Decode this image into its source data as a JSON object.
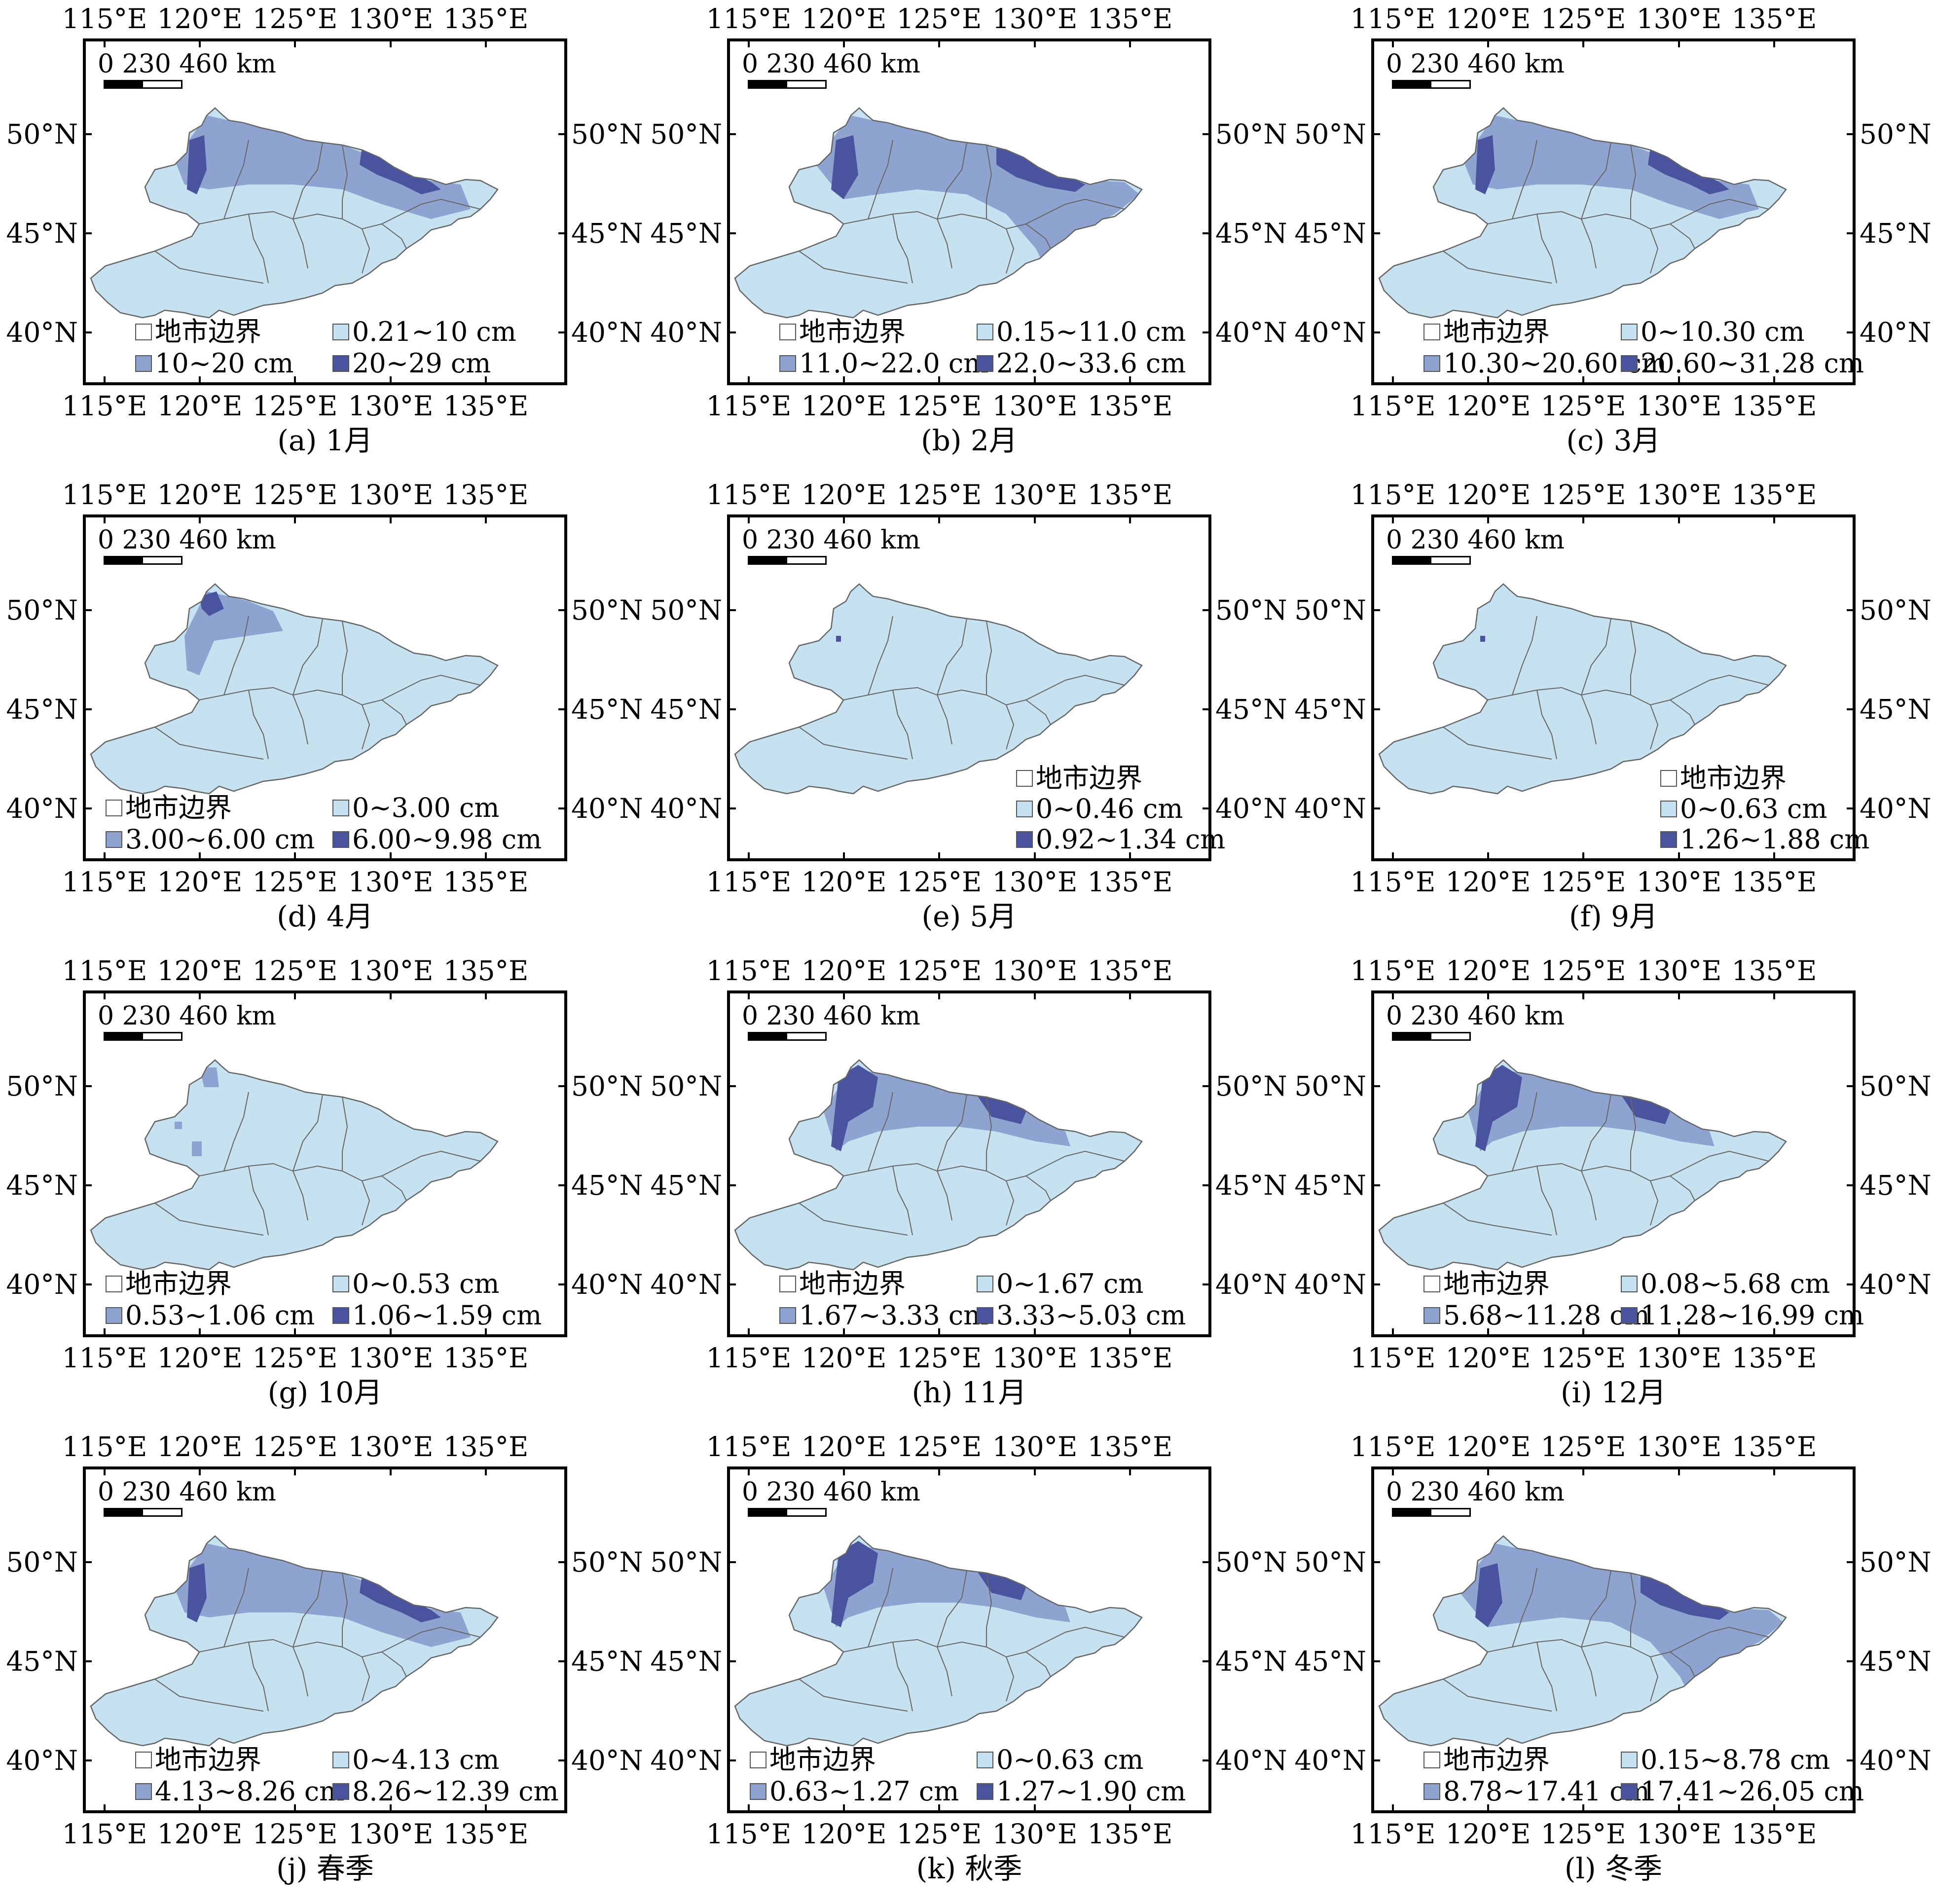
{
  "colors": {
    "boundary_fill": "#ffffff",
    "class1": "#c6e2f0",
    "class2": "#8fa3d0",
    "class3": "#4a549e",
    "border": "#666666"
  },
  "axes": {
    "lon_ticks": [
      "115°E",
      "120°E",
      "125°E",
      "130°E",
      "135°E"
    ],
    "lat_ticks": [
      "50°N",
      "45°N",
      "40°N"
    ]
  },
  "scalebar_label": "0 230 460 km",
  "boundary_label": "地市边界",
  "panels": [
    {
      "caption": "(a) 1月",
      "classes": [
        "0.21~10 cm",
        "10~20 cm",
        "20~29 cm"
      ],
      "style": "deep"
    },
    {
      "caption": "(b) 2月",
      "classes": [
        "0.15~11.0 cm",
        "11.0~22.0 cm",
        "22.0~33.6 cm"
      ],
      "style": "deep2"
    },
    {
      "caption": "(c) 3月",
      "classes": [
        "0~10.30 cm",
        "10.30~20.60 cm",
        "20.60~31.28 cm"
      ],
      "style": "deep"
    },
    {
      "caption": "(d) 4月",
      "classes": [
        "0~3.00 cm",
        "3.00~6.00 cm",
        "6.00~9.98 cm"
      ],
      "style": "mid"
    },
    {
      "caption": "(e) 5月",
      "classes": [
        "0~0.46 cm",
        "0.92~1.34 cm"
      ],
      "style": "light"
    },
    {
      "caption": "(f) 9月",
      "classes": [
        "0~0.63 cm",
        "1.26~1.88 cm"
      ],
      "style": "light"
    },
    {
      "caption": "(g) 10月",
      "classes": [
        "0~0.53 cm",
        "0.53~1.06 cm",
        "1.06~1.59 cm"
      ],
      "style": "light2"
    },
    {
      "caption": "(h) 11月",
      "classes": [
        "0~1.67 cm",
        "1.67~3.33 cm",
        "3.33~5.03 cm"
      ],
      "style": "mid2"
    },
    {
      "caption": "(i) 12月",
      "classes": [
        "0.08~5.68 cm",
        "5.68~11.28 cm",
        "11.28~16.99 cm"
      ],
      "style": "mid2"
    },
    {
      "caption": "(j) 春季",
      "classes": [
        "0~4.13 cm",
        "4.13~8.26 cm",
        "8.26~12.39 cm"
      ],
      "style": "deep"
    },
    {
      "caption": "(k) 秋季",
      "classes": [
        "0~0.63 cm",
        "0.63~1.27 cm",
        "1.27~1.90 cm"
      ],
      "style": "mid2"
    },
    {
      "caption": "(l) 冬季",
      "classes": [
        "0.15~8.78 cm",
        "8.78~17.41 cm",
        "17.41~26.05 cm"
      ],
      "style": "deep2"
    }
  ]
}
